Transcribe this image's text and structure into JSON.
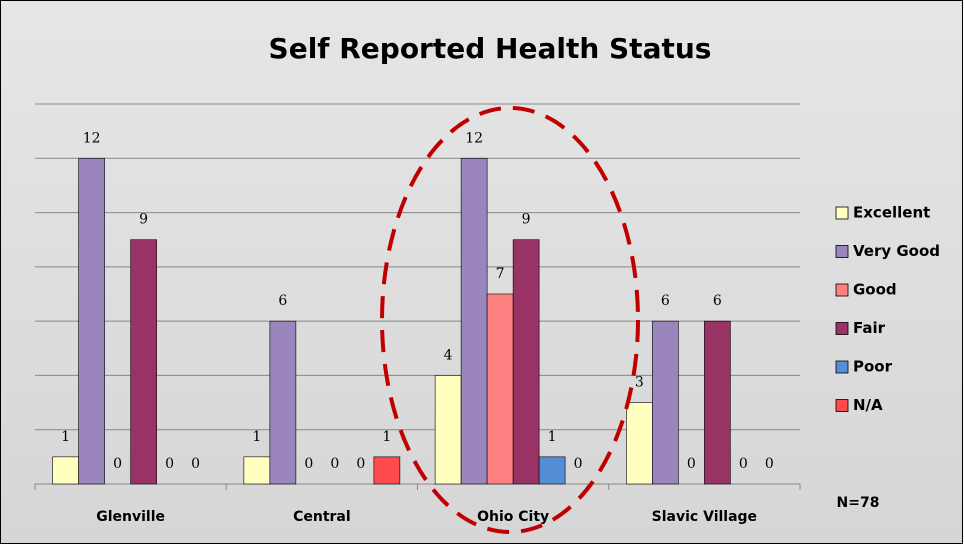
{
  "chart_data": {
    "type": "bar",
    "title": "Self Reported Health Status",
    "categories": [
      "Glenville",
      "Central",
      "Ohio City",
      "Slavic Village"
    ],
    "series": [
      {
        "name": "Excellent",
        "color": "#ffffc0",
        "values": [
          1,
          1,
          4,
          3
        ]
      },
      {
        "name": "Very Good",
        "color": "#9a85bd",
        "values": [
          12,
          6,
          12,
          6
        ]
      },
      {
        "name": "Good",
        "color": "#ff8080",
        "values": [
          0,
          0,
          7,
          0
        ]
      },
      {
        "name": "Fair",
        "color": "#993366",
        "values": [
          9,
          0,
          9,
          6
        ]
      },
      {
        "name": "Poor",
        "color": "#558ed5",
        "values": [
          0,
          0,
          1,
          0
        ]
      },
      {
        "name": "N/A",
        "color": "#ff4b4b",
        "values": [
          0,
          1,
          0,
          0
        ]
      }
    ],
    "ylim": [
      0,
      14
    ],
    "yticks": [
      0,
      2,
      4,
      6,
      8,
      10,
      12,
      14
    ],
    "grid": true,
    "legend": "right",
    "annotations": [
      "N=78"
    ]
  }
}
